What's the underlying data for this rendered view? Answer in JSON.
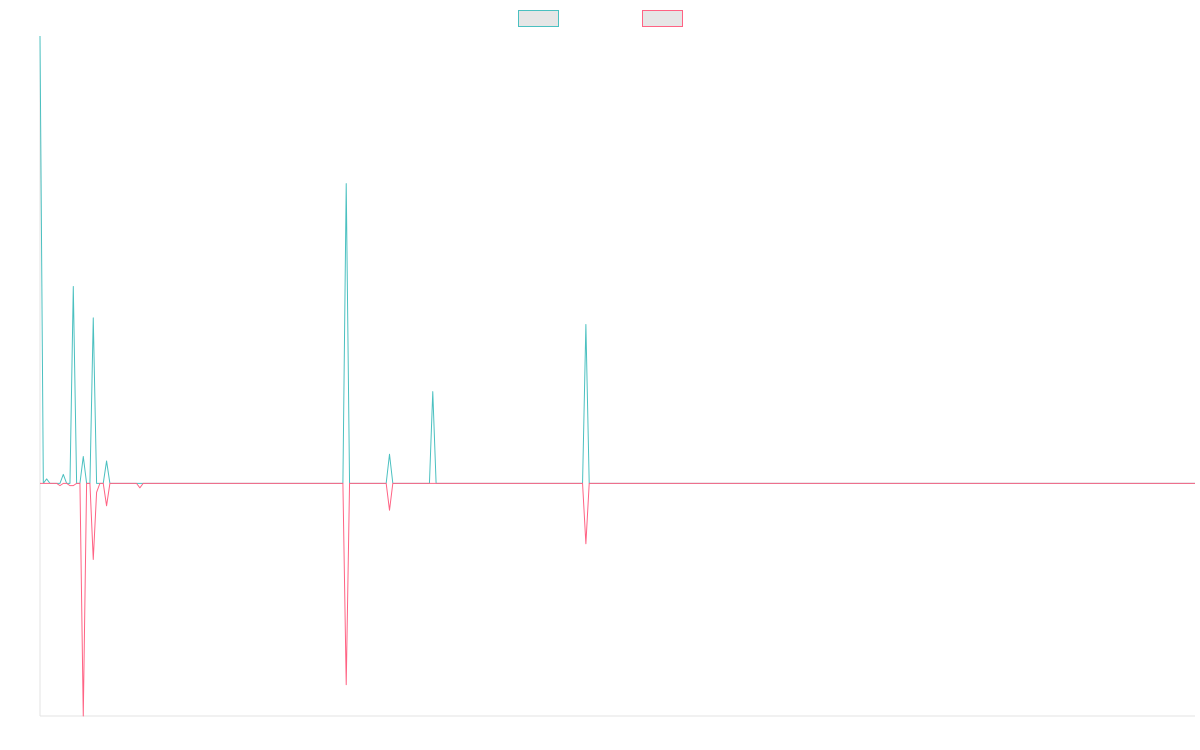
{
  "chart_data": {
    "type": "line",
    "title": "",
    "xlabel": "",
    "ylabel": "",
    "grid": false,
    "legend": {
      "placement": "top-center",
      "entries": [
        {
          "name": "",
          "color": "#4bc0c0"
        },
        {
          "name": "",
          "color": "#ff6384"
        }
      ]
    },
    "xlim": [
      0,
      347
    ],
    "ylim": [
      -0.52,
      1.0
    ],
    "series": [
      {
        "name": "",
        "color": "#4bc0c0",
        "points": [
          [
            0,
            1.0
          ],
          [
            1,
            0.0
          ],
          [
            2,
            0.01
          ],
          [
            3,
            0.0
          ],
          [
            6,
            0.0
          ],
          [
            7,
            0.02
          ],
          [
            8,
            0.0
          ],
          [
            9,
            0.0
          ],
          [
            10,
            0.44
          ],
          [
            11,
            0.0
          ],
          [
            12,
            0.0
          ],
          [
            13,
            0.06
          ],
          [
            14,
            0.0
          ],
          [
            15,
            0.0
          ],
          [
            16,
            0.37
          ],
          [
            17,
            0.0
          ],
          [
            19,
            0.0
          ],
          [
            20,
            0.05
          ],
          [
            21,
            0.0
          ],
          [
            91,
            0.0
          ],
          [
            92,
            0.67
          ],
          [
            93,
            0.0
          ],
          [
            104,
            0.0
          ],
          [
            105,
            0.065
          ],
          [
            106,
            0.0
          ],
          [
            117,
            0.0
          ],
          [
            118,
            0.205
          ],
          [
            119,
            0.0
          ],
          [
            163,
            0.0
          ],
          [
            164,
            0.355
          ],
          [
            165,
            0.0
          ],
          [
            347,
            0.0
          ]
        ]
      },
      {
        "name": "",
        "color": "#ff6384",
        "points": [
          [
            0,
            0.0
          ],
          [
            5,
            0.0
          ],
          [
            6,
            -0.005
          ],
          [
            7,
            0.0
          ],
          [
            8,
            0.0
          ],
          [
            9,
            -0.005
          ],
          [
            10,
            -0.005
          ],
          [
            11,
            0.0
          ],
          [
            12,
            0.0
          ],
          [
            13,
            -0.52
          ],
          [
            14,
            0.0
          ],
          [
            15,
            0.0
          ],
          [
            16,
            -0.17
          ],
          [
            17,
            -0.02
          ],
          [
            18,
            0.0
          ],
          [
            19,
            0.0
          ],
          [
            20,
            -0.05
          ],
          [
            21,
            0.0
          ],
          [
            29,
            0.0
          ],
          [
            30,
            -0.01
          ],
          [
            31,
            0.0
          ],
          [
            91,
            0.0
          ],
          [
            92,
            -0.45
          ],
          [
            93,
            0.0
          ],
          [
            104,
            0.0
          ],
          [
            105,
            -0.06
          ],
          [
            106,
            0.0
          ],
          [
            163,
            0.0
          ],
          [
            164,
            -0.135
          ],
          [
            165,
            0.0
          ],
          [
            347,
            0.0
          ]
        ]
      }
    ]
  }
}
